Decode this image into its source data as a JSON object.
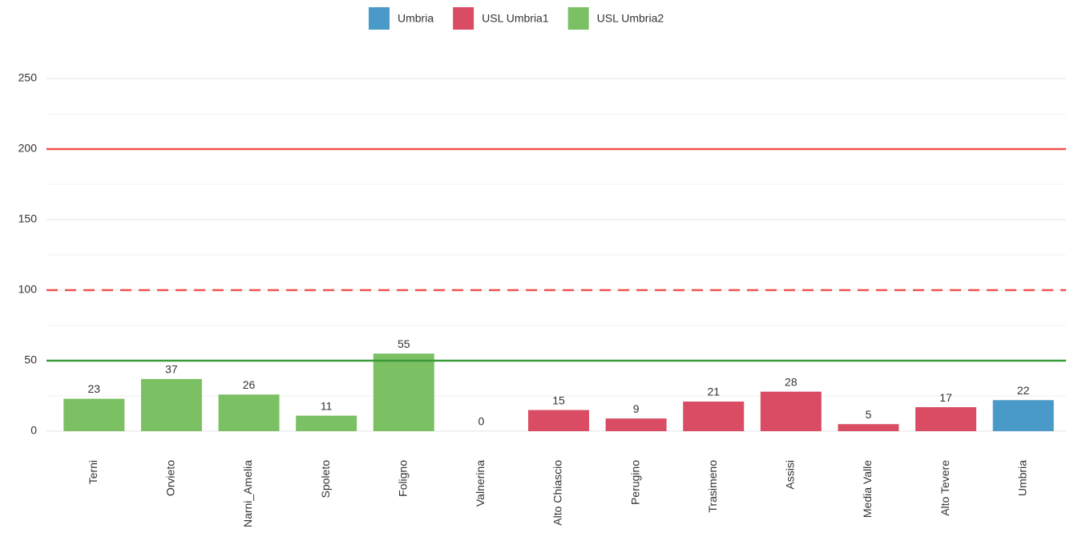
{
  "chart_data": {
    "type": "bar",
    "categories": [
      "Terni",
      "Orvieto",
      "Narni_Amelia",
      "Spoleto",
      "Foligno",
      "Valnerina",
      "Alto Chiascio",
      "Perugino",
      "Trasimeno",
      "Assisi",
      "Media Valle",
      "Alto Tevere",
      "Umbria"
    ],
    "series": [
      {
        "name": "Umbria",
        "color": "#4a9ac9",
        "values": [
          null,
          null,
          null,
          null,
          null,
          null,
          null,
          null,
          null,
          null,
          null,
          null,
          22
        ]
      },
      {
        "name": "USL Umbria1",
        "color": "#d94c63",
        "values": [
          null,
          null,
          null,
          null,
          null,
          null,
          15,
          9,
          21,
          28,
          5,
          17,
          null
        ]
      },
      {
        "name": "USL Umbria2",
        "color": "#7cc064",
        "values": [
          23,
          37,
          26,
          11,
          55,
          0,
          null,
          null,
          null,
          null,
          null,
          null,
          null
        ]
      }
    ],
    "ylim": [
      0,
      250
    ],
    "yticks": [
      0,
      50,
      100,
      150,
      200,
      250
    ],
    "grid": true,
    "reference_lines": [
      {
        "value": 200,
        "color": "#f0514d",
        "style": "solid"
      },
      {
        "value": 100,
        "color": "#f0514d",
        "style": "dashed"
      },
      {
        "value": 50,
        "color": "#3a9a3a",
        "style": "solid"
      }
    ]
  }
}
